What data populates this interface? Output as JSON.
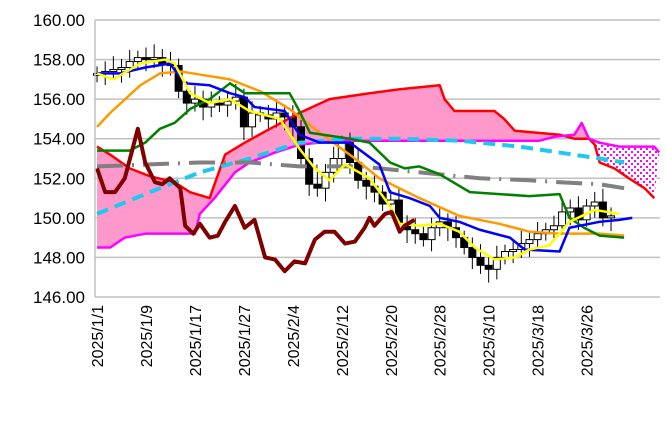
{
  "chart_data": {
    "type": "candlestick-ichimoku",
    "title": "",
    "ylim": [
      146,
      160
    ],
    "xlim": [
      -0.25,
      69
    ],
    "grid": true,
    "yticks": [
      "146.00",
      "148.00",
      "150.00",
      "152.00",
      "154.00",
      "156.00",
      "158.00",
      "160.00"
    ],
    "ytick_values": [
      146,
      148,
      150,
      152,
      154,
      156,
      158,
      160
    ],
    "xticks": [
      {
        "i": 0,
        "label": "2025/1/1"
      },
      {
        "i": 6,
        "label": "2025/1/9"
      },
      {
        "i": 12,
        "label": "2025/1/17"
      },
      {
        "i": 18,
        "label": "2025/1/27"
      },
      {
        "i": 24,
        "label": "2025/2/4"
      },
      {
        "i": 30,
        "label": "2025/2/12"
      },
      {
        "i": 36,
        "label": "2025/2/20"
      },
      {
        "i": 42,
        "label": "2025/2/28"
      },
      {
        "i": 48,
        "label": "2025/3/10"
      },
      {
        "i": 54,
        "label": "2025/3/18"
      },
      {
        "i": 60,
        "label": "2025/3/26"
      }
    ],
    "closes": [
      157.3,
      157.4,
      157.5,
      157.6,
      157.9,
      158.1,
      158.0,
      158.1,
      157.8,
      157.7,
      156.4,
      155.8,
      156.0,
      155.6,
      155.8,
      155.7,
      155.9,
      156.1,
      154.6,
      155.3,
      155.2,
      155.0,
      155.3,
      155.1,
      154.6,
      153.0,
      151.7,
      151.5,
      152.3,
      153.0,
      153.8,
      152.8,
      151.9,
      151.6,
      151.3,
      150.7,
      150.9,
      149.7,
      149.4,
      149.2,
      148.9,
      149.5,
      149.8,
      149.5,
      149.0,
      148.5,
      148.0,
      147.6,
      147.4,
      148.0,
      148.3,
      148.4,
      148.7,
      148.9,
      149.2,
      149.4,
      149.6,
      150.3,
      150.5,
      149.9,
      150.6,
      150.8,
      150.0,
      150.1
    ],
    "series": [
      {
        "name": "senkou-span-a",
        "color": "#ff0000",
        "width": 2.5,
        "points": [
          [
            0,
            153.6
          ],
          [
            1.6,
            153.2
          ],
          [
            4,
            152.5
          ],
          [
            6.5,
            152.1
          ],
          [
            9.5,
            151.8
          ],
          [
            11.4,
            151.3
          ],
          [
            13.8,
            151.0
          ],
          [
            15.7,
            153.2
          ],
          [
            18.1,
            153.8
          ],
          [
            21.2,
            154.5
          ],
          [
            24.8,
            155.3
          ],
          [
            28.5,
            156.0
          ],
          [
            33.4,
            156.3
          ],
          [
            37.1,
            156.5
          ],
          [
            42,
            156.7
          ],
          [
            42.6,
            156.0
          ],
          [
            43.8,
            155.4
          ],
          [
            48.7,
            155.4
          ],
          [
            49.9,
            155.0
          ],
          [
            51.2,
            154.4
          ],
          [
            56.7,
            154.2
          ],
          [
            58.5,
            154.0
          ],
          [
            60.3,
            154.0
          ],
          [
            61,
            153.7
          ],
          [
            61.6,
            152.8
          ],
          [
            63.4,
            152.5
          ],
          [
            65.2,
            152.0
          ],
          [
            67.1,
            151.5
          ],
          [
            68.3,
            151.0
          ]
        ]
      },
      {
        "name": "senkou-span-b",
        "color": "#ff00ff",
        "width": 2.5,
        "points": [
          [
            0,
            148.5
          ],
          [
            1.6,
            148.5
          ],
          [
            3.4,
            149.0
          ],
          [
            5.9,
            149.2
          ],
          [
            12,
            149.2
          ],
          [
            12.6,
            150.2
          ],
          [
            14.4,
            151.0
          ],
          [
            16.9,
            152.3
          ],
          [
            18.7,
            152.8
          ],
          [
            21.8,
            153.3
          ],
          [
            24.8,
            153.7
          ],
          [
            29.7,
            153.9
          ],
          [
            38.9,
            153.9
          ],
          [
            54.2,
            153.9
          ],
          [
            56.1,
            154.1
          ],
          [
            58.5,
            154.2
          ],
          [
            59.4,
            154.8
          ],
          [
            60.3,
            154.0
          ],
          [
            61.6,
            153.8
          ],
          [
            64,
            153.6
          ],
          [
            68.3,
            153.6
          ],
          [
            68.9,
            153.3
          ]
        ]
      },
      {
        "name": "moving-average-200",
        "color": "#1ec8f0",
        "width": 4,
        "dash": "12 7",
        "points": [
          [
            0,
            150.2
          ],
          [
            6.5,
            151.3
          ],
          [
            12.6,
            152.3
          ],
          [
            18.7,
            153.0
          ],
          [
            24.8,
            153.8
          ],
          [
            31,
            154.0
          ],
          [
            37.1,
            154.0
          ],
          [
            44.4,
            153.9
          ],
          [
            51.8,
            153.6
          ],
          [
            56.7,
            153.3
          ],
          [
            61.6,
            153.0
          ],
          [
            64.6,
            152.8
          ]
        ]
      },
      {
        "name": "moving-average-gray",
        "color": "#808080",
        "width": 4,
        "dash": "26 9 2 9",
        "points": [
          [
            0,
            152.6
          ],
          [
            6.5,
            152.7
          ],
          [
            12.6,
            152.8
          ],
          [
            18.7,
            152.8
          ],
          [
            24.8,
            152.6
          ],
          [
            32.2,
            152.6
          ],
          [
            37.1,
            152.4
          ],
          [
            42,
            152.2
          ],
          [
            46.9,
            152.0
          ],
          [
            53,
            151.9
          ],
          [
            56.7,
            151.8
          ],
          [
            61.6,
            151.7
          ],
          [
            64.6,
            151.5
          ]
        ]
      },
      {
        "name": "moving-average-75",
        "color": "#ff9900",
        "width": 2.5,
        "points": [
          [
            0,
            154.6
          ],
          [
            1.6,
            155.3
          ],
          [
            5.3,
            156.7
          ],
          [
            7.7,
            157.3
          ],
          [
            10.2,
            157.4
          ],
          [
            16.3,
            157.0
          ],
          [
            20,
            156.4
          ],
          [
            23.6,
            155.5
          ],
          [
            27.3,
            154.3
          ],
          [
            31.6,
            153.0
          ],
          [
            34.6,
            152.0
          ],
          [
            39.5,
            151.0
          ],
          [
            44.4,
            150.1
          ],
          [
            49.3,
            149.7
          ],
          [
            53,
            149.3
          ],
          [
            56.7,
            149.2
          ],
          [
            61.6,
            149.2
          ],
          [
            64.6,
            149.1
          ]
        ]
      },
      {
        "name": "kijun-sen",
        "color": "#008000",
        "width": 2.5,
        "points": [
          [
            0,
            153.4
          ],
          [
            4,
            153.4
          ],
          [
            5.9,
            153.8
          ],
          [
            7.7,
            154.5
          ],
          [
            9.5,
            154.8
          ],
          [
            11.4,
            155.5
          ],
          [
            13.8,
            156.0
          ],
          [
            16.3,
            156.8
          ],
          [
            18.1,
            156.3
          ],
          [
            23.6,
            156.3
          ],
          [
            24.8,
            155.4
          ],
          [
            26.1,
            154.3
          ],
          [
            31,
            154.0
          ],
          [
            33.4,
            153.8
          ],
          [
            35.9,
            152.8
          ],
          [
            37.7,
            152.5
          ],
          [
            39.5,
            152.6
          ],
          [
            42,
            152.2
          ],
          [
            45.7,
            151.3
          ],
          [
            49.3,
            151.2
          ],
          [
            53,
            151.1
          ],
          [
            56.7,
            151.2
          ],
          [
            57.9,
            150.0
          ],
          [
            59.7,
            149.5
          ],
          [
            61.6,
            149.1
          ],
          [
            64.6,
            149.0
          ]
        ]
      },
      {
        "name": "moving-average-25",
        "color": "#0000ff",
        "width": 2.5,
        "points": [
          [
            0,
            157.3
          ],
          [
            2.8,
            157.3
          ],
          [
            5.9,
            157.6
          ],
          [
            8.9,
            157.8
          ],
          [
            10.8,
            156.8
          ],
          [
            13.8,
            156.7
          ],
          [
            16.3,
            156.3
          ],
          [
            18.1,
            156.1
          ],
          [
            19.3,
            155.6
          ],
          [
            23,
            155.4
          ],
          [
            24.8,
            154.2
          ],
          [
            27.3,
            153.8
          ],
          [
            31,
            153.8
          ],
          [
            34.6,
            152.7
          ],
          [
            35.9,
            151.3
          ],
          [
            38.3,
            151.0
          ],
          [
            40.8,
            150.6
          ],
          [
            42,
            150.0
          ],
          [
            44.4,
            149.8
          ],
          [
            46.9,
            149.4
          ],
          [
            50.6,
            149.0
          ],
          [
            52.4,
            148.4
          ],
          [
            56.7,
            148.3
          ],
          [
            57.9,
            149.5
          ],
          [
            61.6,
            149.8
          ],
          [
            64,
            149.9
          ],
          [
            65.6,
            150.0
          ]
        ]
      },
      {
        "name": "tenkan-sen",
        "color": "#ffff00",
        "width": 2.5,
        "points": [
          [
            0,
            157.3
          ],
          [
            2,
            157.0
          ],
          [
            5.3,
            157.8
          ],
          [
            8.3,
            158.0
          ],
          [
            9.5,
            157.8
          ],
          [
            11.4,
            156.3
          ],
          [
            13.8,
            155.8
          ],
          [
            16.3,
            156.0
          ],
          [
            18.7,
            155.4
          ],
          [
            22.4,
            155.0
          ],
          [
            24.8,
            153.5
          ],
          [
            26.7,
            152.5
          ],
          [
            28.5,
            151.9
          ],
          [
            30.4,
            152.7
          ],
          [
            33.4,
            152.0
          ],
          [
            35.9,
            150.6
          ],
          [
            37.1,
            149.7
          ],
          [
            39.5,
            149.6
          ],
          [
            42,
            149.7
          ],
          [
            44.4,
            149.3
          ],
          [
            46.3,
            148.5
          ],
          [
            48.7,
            147.9
          ],
          [
            51.2,
            148.0
          ],
          [
            53,
            148.4
          ],
          [
            55.4,
            148.6
          ],
          [
            57.9,
            149.8
          ],
          [
            61,
            150.4
          ],
          [
            64,
            150.2
          ]
        ]
      },
      {
        "name": "chikou-span",
        "color": "#800000",
        "width": 4,
        "points": [
          [
            0,
            152.5
          ],
          [
            1,
            151.3
          ],
          [
            2.2,
            151.3
          ],
          [
            3.4,
            152.0
          ],
          [
            5,
            154.5
          ],
          [
            5.9,
            152.8
          ],
          [
            7.1,
            151.8
          ],
          [
            8,
            151.7
          ],
          [
            8.9,
            152.0
          ],
          [
            10.2,
            151.5
          ],
          [
            10.8,
            149.6
          ],
          [
            11.8,
            149.2
          ],
          [
            12.6,
            149.7
          ],
          [
            13.8,
            149.0
          ],
          [
            14.8,
            149.1
          ],
          [
            15.7,
            149.8
          ],
          [
            16.9,
            150.6
          ],
          [
            18.1,
            149.5
          ],
          [
            19.3,
            149.9
          ],
          [
            20.6,
            148.0
          ],
          [
            21.8,
            147.9
          ],
          [
            23,
            147.3
          ],
          [
            24.2,
            147.8
          ],
          [
            25.5,
            147.7
          ],
          [
            26.7,
            148.9
          ],
          [
            27.9,
            149.3
          ],
          [
            29.1,
            149.3
          ],
          [
            30.4,
            148.7
          ],
          [
            31.6,
            148.8
          ],
          [
            32.8,
            149.5
          ],
          [
            33.4,
            150.0
          ],
          [
            34,
            149.6
          ],
          [
            35.3,
            150.2
          ],
          [
            36.1,
            150.3
          ],
          [
            37.1,
            149.3
          ],
          [
            37.7,
            149.6
          ],
          [
            38.9,
            149.9
          ]
        ]
      }
    ],
    "cloud": {
      "bullish_color": "#ff99cc",
      "bearish_pattern_color": "#ff00ff",
      "bearish_from_index": 61
    }
  }
}
